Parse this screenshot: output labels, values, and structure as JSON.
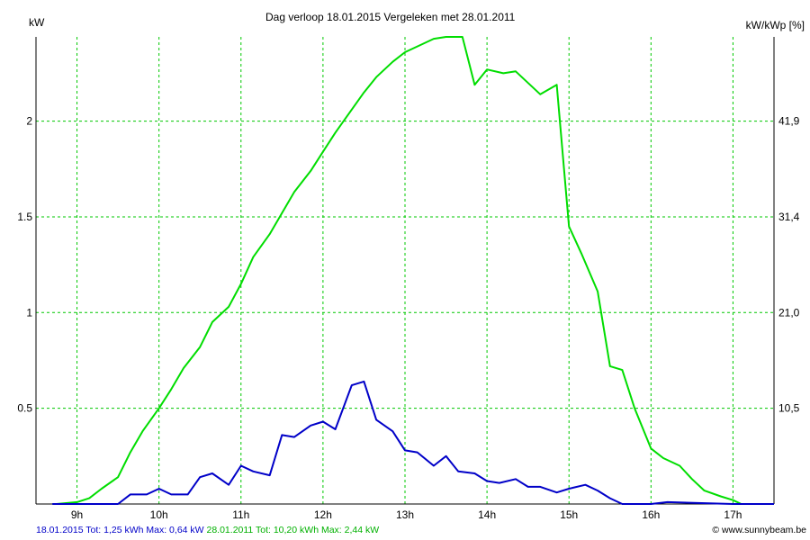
{
  "chart_data": {
    "type": "line",
    "title": "Dag  verloop 18.01.2015   Vergeleken met 28.01.2011",
    "y_left_label": "kW",
    "y_right_label": "kW/kWp [%]",
    "x_range_hours": [
      8.5,
      17.5
    ],
    "y_range_kw": [
      0,
      2.44
    ],
    "x_ticks": [
      {
        "h": 9,
        "label": "9h"
      },
      {
        "h": 10,
        "label": "10h"
      },
      {
        "h": 11,
        "label": "11h"
      },
      {
        "h": 12,
        "label": "12h"
      },
      {
        "h": 13,
        "label": "13h"
      },
      {
        "h": 14,
        "label": "14h"
      },
      {
        "h": 15,
        "label": "15h"
      },
      {
        "h": 16,
        "label": "16h"
      },
      {
        "h": 17,
        "label": "17h"
      }
    ],
    "y_left_ticks": [
      {
        "v": 0.5,
        "label": "0.5"
      },
      {
        "v": 1,
        "label": "1"
      },
      {
        "v": 1.5,
        "label": "1.5"
      },
      {
        "v": 2,
        "label": "2"
      }
    ],
    "y_right_ticks": [
      {
        "v": 0.5,
        "label": "10,5"
      },
      {
        "v": 1,
        "label": "21,0"
      },
      {
        "v": 1.5,
        "label": "31,4"
      },
      {
        "v": 2,
        "label": "41,9"
      }
    ],
    "grid": true,
    "series": [
      {
        "color": "#00dd00",
        "points": [
          [
            8.75,
            0
          ],
          [
            9.0,
            0.01
          ],
          [
            9.15,
            0.03
          ],
          [
            9.3,
            0.08
          ],
          [
            9.5,
            0.14
          ],
          [
            9.65,
            0.27
          ],
          [
            9.8,
            0.38
          ],
          [
            10.0,
            0.5
          ],
          [
            10.15,
            0.6
          ],
          [
            10.3,
            0.71
          ],
          [
            10.5,
            0.82
          ],
          [
            10.65,
            0.95
          ],
          [
            10.85,
            1.03
          ],
          [
            11.0,
            1.15
          ],
          [
            11.15,
            1.29
          ],
          [
            11.35,
            1.41
          ],
          [
            11.5,
            1.52
          ],
          [
            11.65,
            1.63
          ],
          [
            11.85,
            1.74
          ],
          [
            12.0,
            1.84
          ],
          [
            12.15,
            1.94
          ],
          [
            12.35,
            2.06
          ],
          [
            12.5,
            2.15
          ],
          [
            12.65,
            2.23
          ],
          [
            12.85,
            2.31
          ],
          [
            13.0,
            2.36
          ],
          [
            13.15,
            2.39
          ],
          [
            13.35,
            2.43
          ],
          [
            13.5,
            2.44
          ],
          [
            13.7,
            2.44
          ],
          [
            13.85,
            2.19
          ],
          [
            14.0,
            2.27
          ],
          [
            14.2,
            2.25
          ],
          [
            14.35,
            2.26
          ],
          [
            14.65,
            2.14
          ],
          [
            14.85,
            2.19
          ],
          [
            15.0,
            1.45
          ],
          [
            15.15,
            1.31
          ],
          [
            15.35,
            1.11
          ],
          [
            15.5,
            0.72
          ],
          [
            15.65,
            0.7
          ],
          [
            15.8,
            0.5
          ],
          [
            16.0,
            0.29
          ],
          [
            16.15,
            0.24
          ],
          [
            16.35,
            0.2
          ],
          [
            16.5,
            0.13
          ],
          [
            16.65,
            0.07
          ],
          [
            16.85,
            0.04
          ],
          [
            17.0,
            0.02
          ],
          [
            17.1,
            0
          ],
          [
            17.5,
            0
          ]
        ]
      },
      {
        "color": "#0000c8",
        "points": [
          [
            8.7,
            0
          ],
          [
            9.5,
            0
          ],
          [
            9.65,
            0.05
          ],
          [
            9.85,
            0.05
          ],
          [
            10.0,
            0.08
          ],
          [
            10.15,
            0.05
          ],
          [
            10.35,
            0.05
          ],
          [
            10.5,
            0.14
          ],
          [
            10.65,
            0.16
          ],
          [
            10.85,
            0.1
          ],
          [
            11.0,
            0.2
          ],
          [
            11.15,
            0.17
          ],
          [
            11.35,
            0.15
          ],
          [
            11.5,
            0.36
          ],
          [
            11.65,
            0.35
          ],
          [
            11.85,
            0.41
          ],
          [
            12.0,
            0.43
          ],
          [
            12.15,
            0.39
          ],
          [
            12.35,
            0.62
          ],
          [
            12.5,
            0.64
          ],
          [
            12.65,
            0.44
          ],
          [
            12.85,
            0.38
          ],
          [
            13.0,
            0.28
          ],
          [
            13.15,
            0.27
          ],
          [
            13.35,
            0.2
          ],
          [
            13.5,
            0.25
          ],
          [
            13.65,
            0.17
          ],
          [
            13.85,
            0.16
          ],
          [
            14.0,
            0.12
          ],
          [
            14.15,
            0.11
          ],
          [
            14.35,
            0.13
          ],
          [
            14.5,
            0.09
          ],
          [
            14.65,
            0.09
          ],
          [
            14.85,
            0.06
          ],
          [
            15.0,
            0.08
          ],
          [
            15.2,
            0.1
          ],
          [
            15.35,
            0.07
          ],
          [
            15.5,
            0.03
          ],
          [
            15.65,
            0
          ],
          [
            16.0,
            0
          ],
          [
            16.2,
            0.01
          ],
          [
            17.0,
            0
          ],
          [
            17.5,
            0
          ]
        ]
      }
    ]
  },
  "footer": {
    "blue_text": "18.01.2015 Tot: 1,25 kWh Max: 0,64 kW",
    "green_text": "28.01.2011 Tot: 10,20 kWh Max: 2,44 kW",
    "credit": "© www.sunnybeam.be",
    "blue_color": "#0000c8",
    "green_color": "#00b000"
  }
}
